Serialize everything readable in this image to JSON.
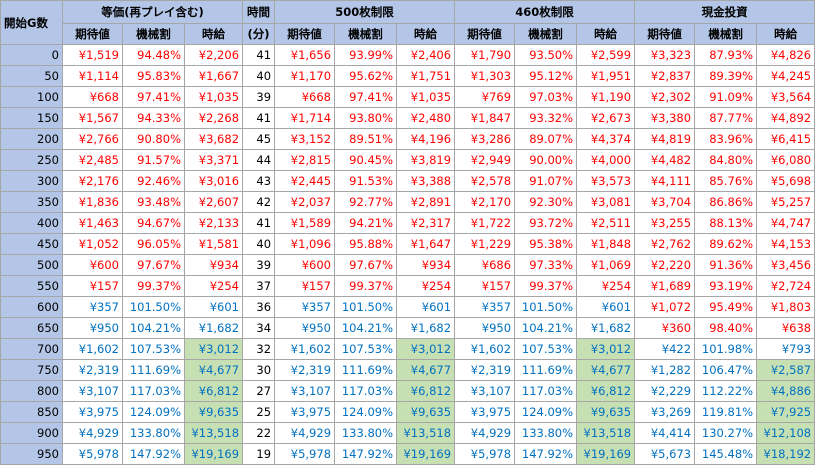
{
  "headers": {
    "start": "開始G数",
    "equal": "等価(再プレイ含む)",
    "time_top": "時間",
    "time_bottom": "(分)",
    "limit500": "500枚制限",
    "limit460": "460枚制限",
    "cash": "現金投資",
    "sub": [
      "期待値",
      "機械割",
      "時給"
    ]
  },
  "rows": [
    {
      "g": "0",
      "eq": [
        "¥1,519",
        "94.48%",
        "¥2,206"
      ],
      "t": "41",
      "l5": [
        "¥1,656",
        "93.99%",
        "¥2,406"
      ],
      "l4": [
        "¥1,790",
        "93.50%",
        "¥2,599"
      ],
      "c": [
        "¥3,323",
        "87.93%",
        "¥4,826"
      ]
    },
    {
      "g": "50",
      "eq": [
        "¥1,114",
        "95.83%",
        "¥1,667"
      ],
      "t": "40",
      "l5": [
        "¥1,170",
        "95.62%",
        "¥1,751"
      ],
      "l4": [
        "¥1,303",
        "95.12%",
        "¥1,951"
      ],
      "c": [
        "¥2,837",
        "89.39%",
        "¥4,245"
      ]
    },
    {
      "g": "100",
      "eq": [
        "¥668",
        "97.41%",
        "¥1,035"
      ],
      "t": "39",
      "l5": [
        "¥668",
        "97.41%",
        "¥1,035"
      ],
      "l4": [
        "¥769",
        "97.03%",
        "¥1,190"
      ],
      "c": [
        "¥2,302",
        "91.09%",
        "¥3,564"
      ]
    },
    {
      "g": "150",
      "eq": [
        "¥1,567",
        "94.33%",
        "¥2,268"
      ],
      "t": "41",
      "l5": [
        "¥1,714",
        "93.80%",
        "¥2,480"
      ],
      "l4": [
        "¥1,847",
        "93.32%",
        "¥2,673"
      ],
      "c": [
        "¥3,380",
        "87.77%",
        "¥4,892"
      ]
    },
    {
      "g": "200",
      "eq": [
        "¥2,766",
        "90.80%",
        "¥3,682"
      ],
      "t": "45",
      "l5": [
        "¥3,152",
        "89.51%",
        "¥4,196"
      ],
      "l4": [
        "¥3,286",
        "89.07%",
        "¥4,374"
      ],
      "c": [
        "¥4,819",
        "83.96%",
        "¥6,415"
      ]
    },
    {
      "g": "250",
      "eq": [
        "¥2,485",
        "91.57%",
        "¥3,371"
      ],
      "t": "44",
      "l5": [
        "¥2,815",
        "90.45%",
        "¥3,819"
      ],
      "l4": [
        "¥2,949",
        "90.00%",
        "¥4,000"
      ],
      "c": [
        "¥4,482",
        "84.80%",
        "¥6,080"
      ]
    },
    {
      "g": "300",
      "eq": [
        "¥2,176",
        "92.46%",
        "¥3,016"
      ],
      "t": "43",
      "l5": [
        "¥2,445",
        "91.53%",
        "¥3,388"
      ],
      "l4": [
        "¥2,578",
        "91.07%",
        "¥3,573"
      ],
      "c": [
        "¥4,111",
        "85.76%",
        "¥5,698"
      ]
    },
    {
      "g": "350",
      "eq": [
        "¥1,836",
        "93.48%",
        "¥2,607"
      ],
      "t": "42",
      "l5": [
        "¥2,037",
        "92.77%",
        "¥2,891"
      ],
      "l4": [
        "¥2,170",
        "92.30%",
        "¥3,081"
      ],
      "c": [
        "¥3,704",
        "86.86%",
        "¥5,257"
      ]
    },
    {
      "g": "400",
      "eq": [
        "¥1,463",
        "94.67%",
        "¥2,133"
      ],
      "t": "41",
      "l5": [
        "¥1,589",
        "94.21%",
        "¥2,317"
      ],
      "l4": [
        "¥1,722",
        "93.72%",
        "¥2,511"
      ],
      "c": [
        "¥3,255",
        "88.13%",
        "¥4,747"
      ]
    },
    {
      "g": "450",
      "eq": [
        "¥1,052",
        "96.05%",
        "¥1,581"
      ],
      "t": "40",
      "l5": [
        "¥1,096",
        "95.88%",
        "¥1,647"
      ],
      "l4": [
        "¥1,229",
        "95.38%",
        "¥1,848"
      ],
      "c": [
        "¥2,762",
        "89.62%",
        "¥4,153"
      ]
    },
    {
      "g": "500",
      "eq": [
        "¥600",
        "97.67%",
        "¥934"
      ],
      "t": "39",
      "l5": [
        "¥600",
        "97.67%",
        "¥934"
      ],
      "l4": [
        "¥686",
        "97.33%",
        "¥1,069"
      ],
      "c": [
        "¥2,220",
        "91.36%",
        "¥3,456"
      ]
    },
    {
      "g": "550",
      "eq": [
        "¥157",
        "99.37%",
        "¥254"
      ],
      "t": "37",
      "l5": [
        "¥157",
        "99.37%",
        "¥254"
      ],
      "l4": [
        "¥157",
        "99.37%",
        "¥254"
      ],
      "c": [
        "¥1,689",
        "93.19%",
        "¥2,724"
      ]
    },
    {
      "g": "600",
      "eq": [
        "¥357",
        "101.50%",
        "¥601"
      ],
      "t": "36",
      "l5": [
        "¥357",
        "101.50%",
        "¥601"
      ],
      "l4": [
        "¥357",
        "101.50%",
        "¥601"
      ],
      "c": [
        "¥1,072",
        "95.49%",
        "¥1,803"
      ]
    },
    {
      "g": "650",
      "eq": [
        "¥950",
        "104.21%",
        "¥1,682"
      ],
      "t": "34",
      "l5": [
        "¥950",
        "104.21%",
        "¥1,682"
      ],
      "l4": [
        "¥950",
        "104.21%",
        "¥1,682"
      ],
      "c": [
        "¥360",
        "98.40%",
        "¥638"
      ]
    },
    {
      "g": "700",
      "eq": [
        "¥1,602",
        "107.53%",
        "¥3,012"
      ],
      "t": "32",
      "l5": [
        "¥1,602",
        "107.53%",
        "¥3,012"
      ],
      "l4": [
        "¥1,602",
        "107.53%",
        "¥3,012"
      ],
      "c": [
        "¥422",
        "101.98%",
        "¥793"
      ]
    },
    {
      "g": "750",
      "eq": [
        "¥2,319",
        "111.69%",
        "¥4,677"
      ],
      "t": "30",
      "l5": [
        "¥2,319",
        "111.69%",
        "¥4,677"
      ],
      "l4": [
        "¥2,319",
        "111.69%",
        "¥4,677"
      ],
      "c": [
        "¥1,282",
        "106.47%",
        "¥2,587"
      ]
    },
    {
      "g": "800",
      "eq": [
        "¥3,107",
        "117.03%",
        "¥6,812"
      ],
      "t": "27",
      "l5": [
        "¥3,107",
        "117.03%",
        "¥6,812"
      ],
      "l4": [
        "¥3,107",
        "117.03%",
        "¥6,812"
      ],
      "c": [
        "¥2,229",
        "112.22%",
        "¥4,886"
      ]
    },
    {
      "g": "850",
      "eq": [
        "¥3,975",
        "124.09%",
        "¥9,635"
      ],
      "t": "25",
      "l5": [
        "¥3,975",
        "124.09%",
        "¥9,635"
      ],
      "l4": [
        "¥3,975",
        "124.09%",
        "¥9,635"
      ],
      "c": [
        "¥3,269",
        "119.81%",
        "¥7,925"
      ]
    },
    {
      "g": "900",
      "eq": [
        "¥4,929",
        "133.80%",
        "¥13,518"
      ],
      "t": "22",
      "l5": [
        "¥4,929",
        "133.80%",
        "¥13,518"
      ],
      "l4": [
        "¥4,929",
        "133.80%",
        "¥13,518"
      ],
      "c": [
        "¥4,414",
        "130.27%",
        "¥12,108"
      ]
    },
    {
      "g": "950",
      "eq": [
        "¥5,978",
        "147.92%",
        "¥19,169"
      ],
      "t": "19",
      "l5": [
        "¥5,978",
        "147.92%",
        "¥19,169"
      ],
      "l4": [
        "¥5,978",
        "147.92%",
        "¥19,169"
      ],
      "c": [
        "¥5,673",
        "145.48%",
        "¥18,192"
      ]
    }
  ],
  "colors": {
    "header_bg": "#b4c6e7",
    "negative": "#ff0000",
    "positive": "#0070c0",
    "highlight": "#c6e0b4"
  }
}
